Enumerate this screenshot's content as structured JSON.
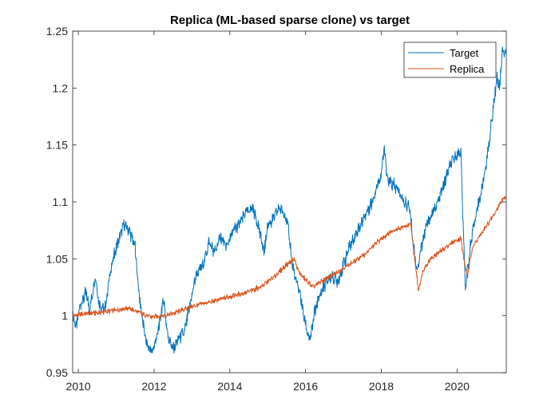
{
  "chart_data": {
    "type": "line",
    "title": "Replica (ML-based sparse clone) vs target",
    "xlabel": "",
    "ylabel": "",
    "xlim": [
      2009.85,
      2021.3
    ],
    "ylim": [
      0.95,
      1.25
    ],
    "x_ticks": [
      2010,
      2012,
      2014,
      2016,
      2018,
      2020
    ],
    "x_tick_labels": [
      "2010",
      "2012",
      "2014",
      "2016",
      "2018",
      "2020"
    ],
    "y_ticks": [
      0.95,
      1,
      1.05,
      1.1,
      1.15,
      1.2,
      1.25
    ],
    "y_tick_labels": [
      "0.95",
      "1",
      "1.05",
      "1.1",
      "1.15",
      "1.2",
      "1.25"
    ],
    "grid": false,
    "legend_position": "top-right",
    "series": [
      {
        "name": "Target",
        "color": "#0072BD",
        "points": [
          [
            2009.85,
            1.0
          ],
          [
            2009.95,
            0.99
          ],
          [
            2010.05,
            1.01
          ],
          [
            2010.2,
            1.02
          ],
          [
            2010.3,
            1.005
          ],
          [
            2010.45,
            1.035
          ],
          [
            2010.55,
            1.01
          ],
          [
            2010.7,
            1.005
          ],
          [
            2010.85,
            1.04
          ],
          [
            2011.0,
            1.06
          ],
          [
            2011.2,
            1.08
          ],
          [
            2011.35,
            1.075
          ],
          [
            2011.5,
            1.06
          ],
          [
            2011.6,
            1.02
          ],
          [
            2011.7,
            0.995
          ],
          [
            2011.8,
            0.975
          ],
          [
            2011.95,
            0.968
          ],
          [
            2012.1,
            0.985
          ],
          [
            2012.25,
            1.015
          ],
          [
            2012.35,
            0.985
          ],
          [
            2012.5,
            0.97
          ],
          [
            2012.65,
            0.98
          ],
          [
            2012.8,
            0.985
          ],
          [
            2012.95,
            1.01
          ],
          [
            2013.1,
            1.035
          ],
          [
            2013.3,
            1.045
          ],
          [
            2013.45,
            1.065
          ],
          [
            2013.6,
            1.055
          ],
          [
            2013.75,
            1.07
          ],
          [
            2013.9,
            1.06
          ],
          [
            2014.1,
            1.075
          ],
          [
            2014.25,
            1.08
          ],
          [
            2014.4,
            1.09
          ],
          [
            2014.6,
            1.095
          ],
          [
            2014.75,
            1.08
          ],
          [
            2014.9,
            1.055
          ],
          [
            2015.0,
            1.08
          ],
          [
            2015.15,
            1.085
          ],
          [
            2015.3,
            1.095
          ],
          [
            2015.45,
            1.09
          ],
          [
            2015.55,
            1.075
          ],
          [
            2015.65,
            1.045
          ],
          [
            2015.75,
            1.03
          ],
          [
            2015.85,
            1.02
          ],
          [
            2015.95,
            1.0
          ],
          [
            2016.05,
            0.985
          ],
          [
            2016.12,
            0.978
          ],
          [
            2016.25,
            1.005
          ],
          [
            2016.4,
            1.02
          ],
          [
            2016.55,
            1.03
          ],
          [
            2016.7,
            1.035
          ],
          [
            2016.85,
            1.03
          ],
          [
            2017.0,
            1.045
          ],
          [
            2017.15,
            1.06
          ],
          [
            2017.3,
            1.07
          ],
          [
            2017.45,
            1.08
          ],
          [
            2017.6,
            1.09
          ],
          [
            2017.75,
            1.1
          ],
          [
            2017.9,
            1.115
          ],
          [
            2018.0,
            1.125
          ],
          [
            2018.08,
            1.148
          ],
          [
            2018.15,
            1.12
          ],
          [
            2018.3,
            1.115
          ],
          [
            2018.45,
            1.11
          ],
          [
            2018.6,
            1.1
          ],
          [
            2018.75,
            1.095
          ],
          [
            2018.85,
            1.06
          ],
          [
            2018.95,
            1.04
          ],
          [
            2019.05,
            1.06
          ],
          [
            2019.2,
            1.08
          ],
          [
            2019.35,
            1.09
          ],
          [
            2019.5,
            1.1
          ],
          [
            2019.65,
            1.115
          ],
          [
            2019.8,
            1.13
          ],
          [
            2019.95,
            1.14
          ],
          [
            2020.1,
            1.145
          ],
          [
            2020.15,
            1.09
          ],
          [
            2020.22,
            1.025
          ],
          [
            2020.35,
            1.06
          ],
          [
            2020.5,
            1.09
          ],
          [
            2020.65,
            1.11
          ],
          [
            2020.8,
            1.14
          ],
          [
            2020.95,
            1.18
          ],
          [
            2021.05,
            1.21
          ],
          [
            2021.12,
            1.2
          ],
          [
            2021.2,
            1.235
          ],
          [
            2021.3,
            1.23
          ]
        ]
      },
      {
        "name": "Replica",
        "color": "#D95319",
        "points": [
          [
            2009.85,
            1.0
          ],
          [
            2010.2,
            1.002
          ],
          [
            2010.6,
            1.003
          ],
          [
            2011.0,
            1.005
          ],
          [
            2011.3,
            1.007
          ],
          [
            2011.6,
            1.003
          ],
          [
            2011.9,
            0.999
          ],
          [
            2012.2,
            1.0
          ],
          [
            2012.5,
            1.002
          ],
          [
            2012.8,
            1.006
          ],
          [
            2013.2,
            1.01
          ],
          [
            2013.6,
            1.013
          ],
          [
            2014.0,
            1.017
          ],
          [
            2014.4,
            1.02
          ],
          [
            2014.8,
            1.025
          ],
          [
            2015.2,
            1.035
          ],
          [
            2015.5,
            1.045
          ],
          [
            2015.7,
            1.05
          ],
          [
            2015.8,
            1.04
          ],
          [
            2015.9,
            1.035
          ],
          [
            2016.05,
            1.03
          ],
          [
            2016.2,
            1.025
          ],
          [
            2016.4,
            1.03
          ],
          [
            2016.7,
            1.035
          ],
          [
            2017.0,
            1.042
          ],
          [
            2017.3,
            1.048
          ],
          [
            2017.6,
            1.055
          ],
          [
            2017.9,
            1.065
          ],
          [
            2018.1,
            1.07
          ],
          [
            2018.3,
            1.075
          ],
          [
            2018.6,
            1.078
          ],
          [
            2018.78,
            1.08
          ],
          [
            2018.9,
            1.045
          ],
          [
            2018.98,
            1.022
          ],
          [
            2019.1,
            1.04
          ],
          [
            2019.3,
            1.05
          ],
          [
            2019.5,
            1.055
          ],
          [
            2019.7,
            1.06
          ],
          [
            2019.9,
            1.065
          ],
          [
            2020.1,
            1.068
          ],
          [
            2020.2,
            1.045
          ],
          [
            2020.28,
            1.035
          ],
          [
            2020.4,
            1.06
          ],
          [
            2020.6,
            1.07
          ],
          [
            2020.8,
            1.08
          ],
          [
            2021.0,
            1.09
          ],
          [
            2021.15,
            1.1
          ],
          [
            2021.3,
            1.105
          ]
        ]
      }
    ]
  }
}
